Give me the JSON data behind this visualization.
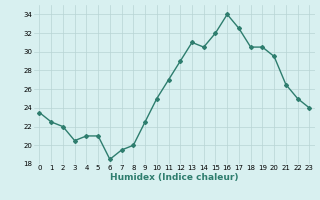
{
  "x": [
    0,
    1,
    2,
    3,
    4,
    5,
    6,
    7,
    8,
    9,
    10,
    11,
    12,
    13,
    14,
    15,
    16,
    17,
    18,
    19,
    20,
    21,
    22,
    23
  ],
  "y": [
    23.5,
    22.5,
    22.0,
    20.5,
    21.0,
    21.0,
    18.5,
    19.5,
    20.0,
    22.5,
    25.0,
    27.0,
    29.0,
    31.0,
    30.5,
    32.0,
    34.0,
    32.5,
    30.5,
    30.5,
    29.5,
    26.5,
    25.0,
    24.0
  ],
  "xlabel": "Humidex (Indice chaleur)",
  "ylim": [
    18,
    35
  ],
  "xlim": [
    -0.5,
    23.5
  ],
  "yticks": [
    18,
    20,
    22,
    24,
    26,
    28,
    30,
    32,
    34
  ],
  "xticks": [
    0,
    1,
    2,
    3,
    4,
    5,
    6,
    7,
    8,
    9,
    10,
    11,
    12,
    13,
    14,
    15,
    16,
    17,
    18,
    19,
    20,
    21,
    22,
    23
  ],
  "line_color": "#2e7d6e",
  "bg_color": "#d8f0f0",
  "grid_color": "#b8d4d4",
  "marker": "D",
  "marker_size": 2.0,
  "line_width": 1.0,
  "tick_fontsize": 5.0,
  "xlabel_fontsize": 6.5
}
